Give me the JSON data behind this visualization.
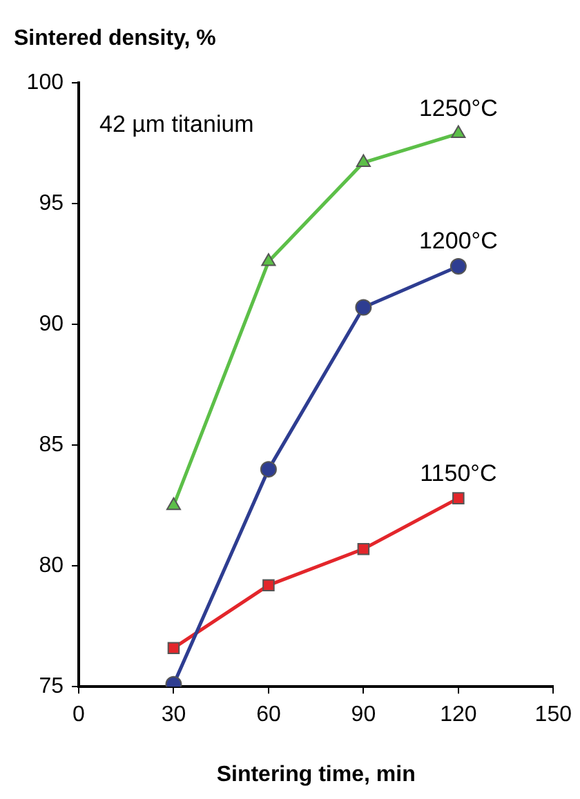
{
  "chart_data": {
    "type": "line",
    "ylabel": "Sintered density, %",
    "xlabel": "Sintering time, min",
    "annotations": [
      "42 µm titanium"
    ],
    "xlim": [
      0,
      150
    ],
    "xticks": [
      0,
      30,
      60,
      90,
      120,
      150
    ],
    "ylim": [
      75,
      100
    ],
    "yticks": [
      75,
      80,
      85,
      90,
      95,
      100
    ],
    "grid": false,
    "legend": false,
    "line_style": "solid",
    "series": [
      {
        "name": "1250°C",
        "color": "#5cbf48",
        "marker": "triangle",
        "x": [
          30,
          60,
          90,
          120
        ],
        "values": [
          82.5,
          92.6,
          96.7,
          97.9
        ]
      },
      {
        "name": "1200°C",
        "color": "#2e3d91",
        "marker": "circle",
        "x": [
          30,
          60,
          90,
          120
        ],
        "values": [
          75.1,
          84.0,
          90.7,
          92.4
        ]
      },
      {
        "name": "1150°C",
        "color": "#e3262b",
        "marker": "square",
        "x": [
          30,
          60,
          90,
          120
        ],
        "values": [
          76.6,
          79.2,
          80.7,
          82.8
        ]
      }
    ]
  }
}
